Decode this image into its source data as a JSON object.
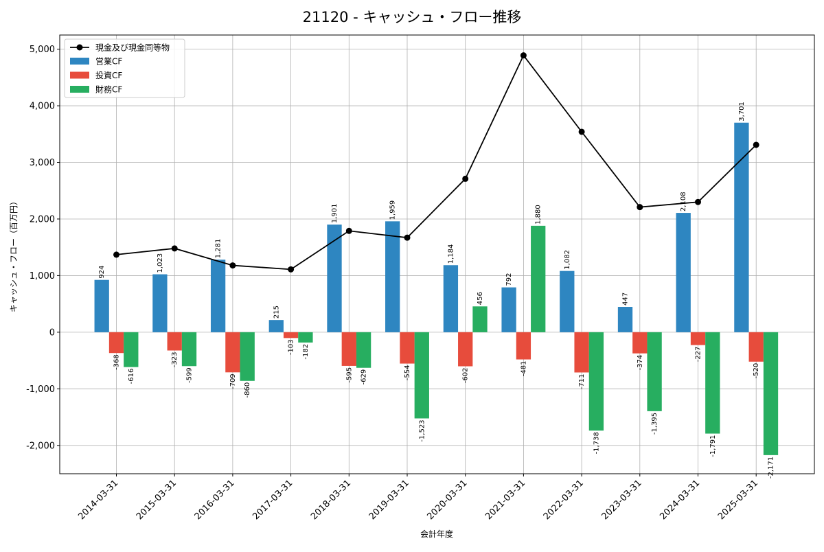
{
  "chart_data": {
    "type": "bar",
    "title": "21120 - キャッシュ・フロー推移",
    "xlabel": "会計年度",
    "ylabel": "キャッシュ・フロー（百万円）",
    "ylim": [
      -2500,
      5250
    ],
    "yticks": [
      -2000,
      -1000,
      0,
      1000,
      2000,
      3000,
      4000,
      5000
    ],
    "ytick_labels": [
      "-2,000",
      "-1,000",
      "0",
      "1,000",
      "2,000",
      "3,000",
      "4,000",
      "5,000"
    ],
    "grid": true,
    "legend_position": "top-left",
    "categories": [
      "2014-03-31",
      "2015-03-31",
      "2016-03-31",
      "2017-03-31",
      "2018-03-31",
      "2019-03-31",
      "2020-03-31",
      "2021-03-31",
      "2022-03-31",
      "2023-03-31",
      "2024-03-31",
      "2025-03-31"
    ],
    "line": {
      "name": "現金及び現金同等物",
      "color": "#000000",
      "values": [
        1370,
        1480,
        1180,
        1110,
        1790,
        1670,
        2710,
        4890,
        3540,
        2210,
        2300,
        3310
      ]
    },
    "series": [
      {
        "name": "営業CF",
        "color": "#2e86c1",
        "values": [
          924,
          1023,
          1281,
          215,
          1901,
          1959,
          1184,
          792,
          1082,
          447,
          2108,
          3701
        ],
        "labels": [
          "924",
          "1,023",
          "1,281",
          "215",
          "1,901",
          "1,959",
          "1,184",
          "792",
          "1,082",
          "447",
          "2,108",
          "3,701"
        ]
      },
      {
        "name": "投資CF",
        "color": "#e74c3c",
        "values": [
          -368,
          -323,
          -709,
          -103,
          -595,
          -554,
          -602,
          -481,
          -711,
          -374,
          -227,
          -520
        ],
        "labels": [
          "-368",
          "-323",
          "-709",
          "-103",
          "-595",
          "-554",
          "-602",
          "-481",
          "-711",
          "-374",
          "-227",
          "-520"
        ]
      },
      {
        "name": "財務CF",
        "color": "#27ae60",
        "values": [
          -616,
          -599,
          -860,
          -182,
          -629,
          -1523,
          456,
          1880,
          -1738,
          -1395,
          -1791,
          -2171
        ],
        "labels": [
          "-616",
          "-599",
          "-860",
          "-182",
          "-629",
          "-1,523",
          "456",
          "1,880",
          "-1,738",
          "-1,395",
          "-1,791",
          "-2,171"
        ]
      }
    ]
  }
}
